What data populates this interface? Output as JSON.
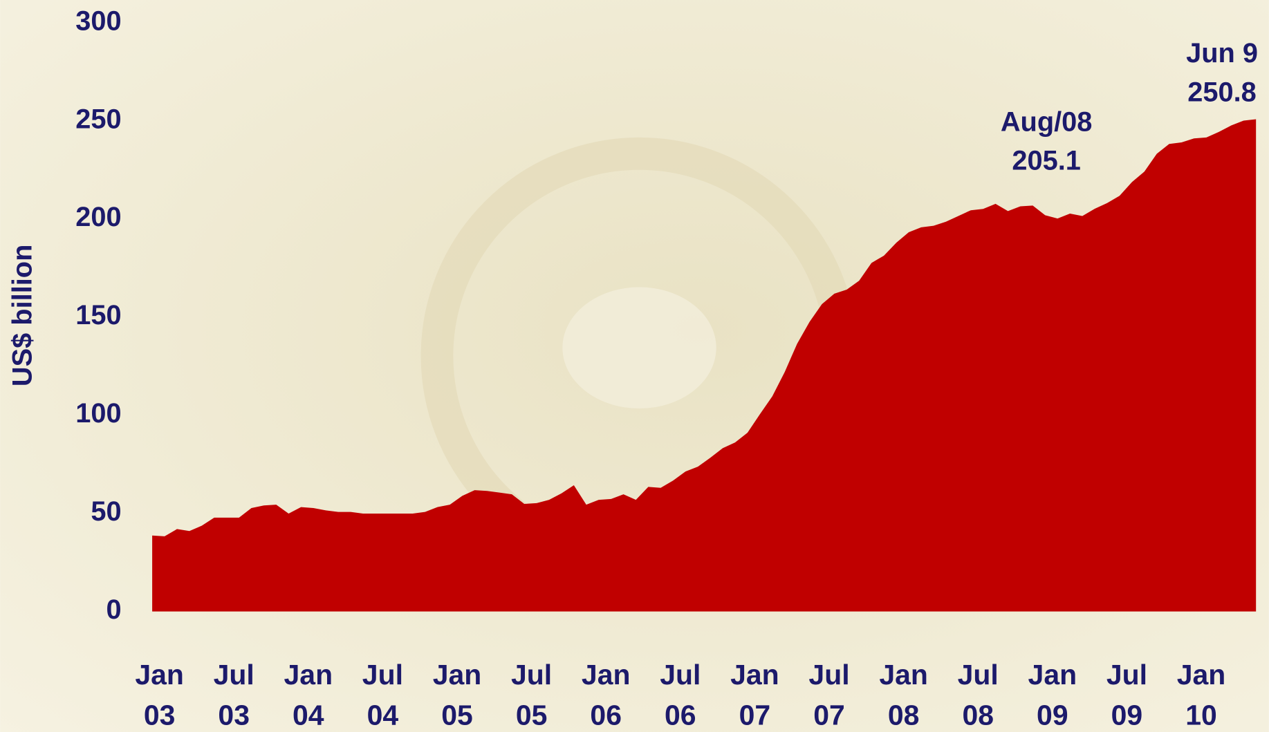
{
  "chart_data": {
    "type": "area",
    "y_label": "US$ billion",
    "color": "#c00000",
    "categories": [
      "Jan 03",
      null,
      null,
      null,
      null,
      null,
      "Jul 03",
      null,
      null,
      null,
      null,
      null,
      "Jan 04",
      null,
      null,
      null,
      null,
      null,
      "Jul 04",
      null,
      null,
      null,
      null,
      null,
      "Jan 05",
      null,
      null,
      null,
      null,
      null,
      "Jul 05",
      null,
      null,
      null,
      null,
      null,
      "Jan 06",
      null,
      null,
      null,
      null,
      null,
      "Jul 06",
      null,
      null,
      null,
      null,
      null,
      "Jan 07",
      null,
      null,
      null,
      null,
      null,
      "Jul 07",
      null,
      null,
      null,
      null,
      null,
      "Jan 08",
      null,
      null,
      null,
      null,
      null,
      "Jul 08",
      null,
      null,
      null,
      null,
      null,
      "Jan 09",
      null,
      null,
      null,
      null,
      null,
      "Jul 09",
      null,
      null,
      null,
      null,
      null,
      "Jan 10",
      null,
      null,
      null,
      null,
      null
    ],
    "values": [
      38.7,
      38.3,
      42,
      41,
      43.7,
      47.8,
      47.8,
      47.8,
      52.7,
      54,
      54.4,
      49.9,
      53.2,
      52.7,
      51.5,
      50.7,
      50.7,
      49.9,
      49.9,
      49.9,
      49.9,
      49.9,
      50.7,
      53.2,
      54.4,
      58.9,
      61.8,
      61.4,
      60.6,
      59.7,
      54.8,
      55.2,
      56.9,
      60.2,
      64.3,
      54.4,
      56.9,
      57.3,
      59.7,
      56.9,
      63.5,
      63,
      66.7,
      71.3,
      73.8,
      78.3,
      83.2,
      86.1,
      91.1,
      100.5,
      109.6,
      122,
      136.4,
      147.5,
      156.6,
      161.9,
      164,
      168.5,
      177.6,
      181.3,
      187.9,
      193.2,
      195.7,
      196.5,
      198.6,
      201.5,
      204.4,
      205.1,
      207.7,
      204,
      206.4,
      206.8,
      201.9,
      200.2,
      202.7,
      201.5,
      205.2,
      208.1,
      211.8,
      218.8,
      224.1,
      233.2,
      238.2,
      239,
      241,
      241.5,
      244.3,
      247.6,
      250.1,
      250.8
    ],
    "ylim": [
      0,
      300
    ],
    "yticks": [
      0,
      50,
      100,
      150,
      200,
      250,
      300
    ],
    "annotations": [
      {
        "label": "Aug/08",
        "value": 205.1
      },
      {
        "label": "Jun 9",
        "value": 250.8
      }
    ]
  }
}
